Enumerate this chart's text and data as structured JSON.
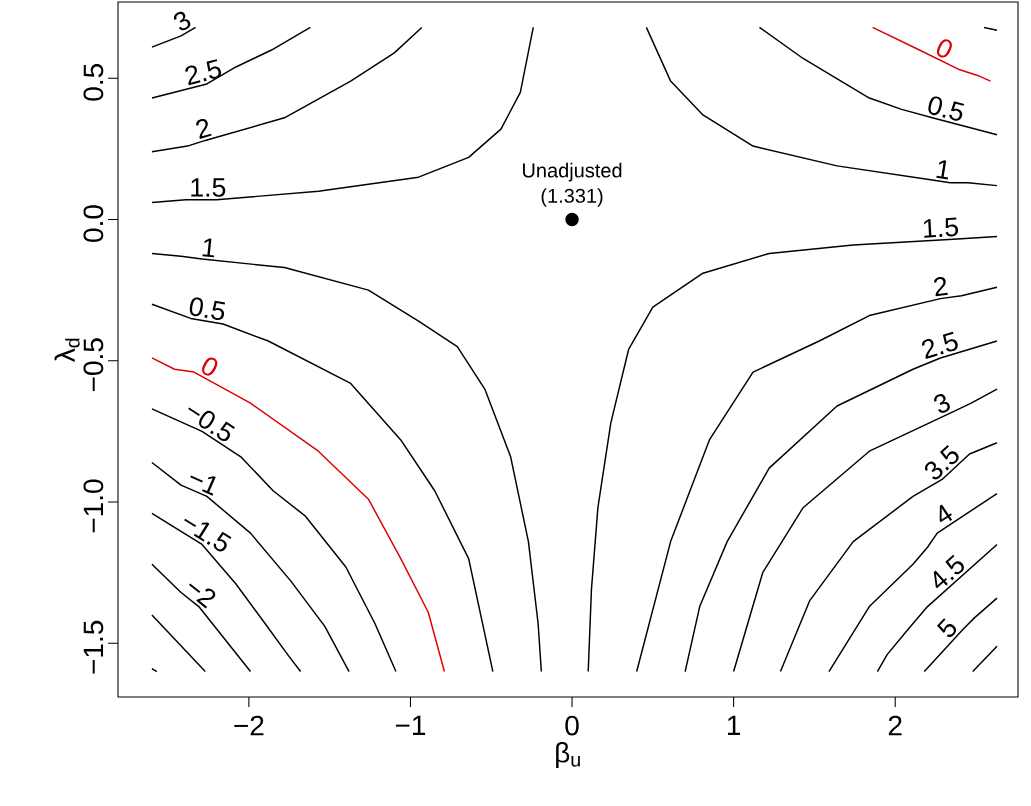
{
  "chart_data": {
    "type": "line",
    "xlabel": "β$_{u}$",
    "ylabel": "λ$_{d}$",
    "xlim": [
      -2.81,
      2.76
    ],
    "ylim": [
      -1.69,
      0.77
    ],
    "xticks": [
      {
        "value": -2,
        "label": "−2"
      },
      {
        "value": -1,
        "label": "−1"
      },
      0,
      1,
      2
    ],
    "yticks": [
      {
        "value": -1.5,
        "label": "−1.5"
      },
      {
        "value": -1.0,
        "label": "−1.0"
      },
      {
        "value": -0.5,
        "label": "−0.5"
      },
      {
        "value": 0,
        "label": "0.0"
      },
      0.5
    ],
    "grid": false,
    "annotations": [
      {
        "text": "Unadjusted (1.331)",
        "x": 0,
        "y": 0
      }
    ],
    "series": [
      {
        "name": "3",
        "color": "#000000",
        "x": [
          -2.6,
          -2.42,
          -2.33
        ],
        "values": [
          0.61,
          0.65,
          0.68
        ]
      },
      {
        "name": "2.5",
        "color": "#000000",
        "x": [
          -2.6,
          -2.26,
          -2.08,
          -1.86,
          -1.62
        ],
        "values": [
          0.43,
          0.48,
          0.54,
          0.6,
          0.68
        ]
      },
      {
        "name": "2",
        "color": "#000000",
        "x": [
          -2.6,
          -2.38,
          -2.27,
          -1.78,
          -1.37,
          -1.1,
          -0.93
        ],
        "values": [
          0.24,
          0.26,
          0.28,
          0.36,
          0.49,
          0.59,
          0.68
        ]
      },
      {
        "name": "1.5",
        "color": "#000000",
        "x": [
          -2.6,
          -2.39,
          -2.2,
          -1.57,
          -0.95,
          -0.64,
          -0.44,
          -0.32,
          -0.24
        ],
        "values": [
          0.06,
          0.07,
          0.07,
          0.1,
          0.15,
          0.22,
          0.32,
          0.45,
          0.68
        ]
      },
      {
        "name": "1",
        "color": "#000000",
        "x": [
          -2.6,
          -2.42,
          -2.29,
          -1.78,
          -1.26,
          -0.95,
          -0.71,
          -0.54,
          -0.38,
          -0.27,
          -0.21,
          -0.19
        ],
        "values": [
          -0.12,
          -0.13,
          -0.14,
          -0.17,
          -0.25,
          -0.36,
          -0.45,
          -0.6,
          -0.84,
          -1.14,
          -1.43,
          -1.6
        ]
      },
      {
        "name": "0.5",
        "color": "#000000",
        "x": [
          -2.6,
          -2.36,
          -2.16,
          -1.88,
          -1.37,
          -1.06,
          -0.85,
          -0.64,
          -0.49
        ],
        "values": [
          -0.3,
          -0.35,
          -0.37,
          -0.43,
          -0.58,
          -0.78,
          -0.96,
          -1.2,
          -1.6
        ]
      },
      {
        "name": "0",
        "color": "#dd0000",
        "x": [
          -2.6,
          -2.46,
          -2.34,
          -1.99,
          -1.57,
          -1.26,
          -1.06,
          -0.89,
          -0.79
        ],
        "values": [
          -0.49,
          -0.53,
          -0.54,
          -0.65,
          -0.82,
          -0.99,
          -1.2,
          -1.39,
          -1.6
        ]
      },
      {
        "name": "−0.5",
        "color": "#000000",
        "x": [
          -2.6,
          -2.29,
          -2.05,
          -1.85,
          -1.65,
          -1.4,
          -1.22,
          -1.09
        ],
        "values": [
          -0.67,
          -0.75,
          -0.84,
          -0.96,
          -1.05,
          -1.23,
          -1.43,
          -1.6
        ]
      },
      {
        "name": "−1",
        "color": "#000000",
        "x": [
          -2.6,
          -2.42,
          -2.26,
          -1.99,
          -1.74,
          -1.53,
          -1.38
        ],
        "values": [
          -0.86,
          -0.94,
          -0.98,
          -1.11,
          -1.28,
          -1.44,
          -1.6
        ]
      },
      {
        "name": "−1.5",
        "color": "#000000",
        "x": [
          -2.6,
          -2.29,
          -2.08,
          -1.9,
          -1.76,
          -1.68
        ],
        "values": [
          -1.04,
          -1.15,
          -1.29,
          -1.43,
          -1.54,
          -1.6
        ]
      },
      {
        "name": "−2",
        "color": "#000000",
        "x": [
          -2.6,
          -2.42,
          -2.31,
          -1.99
        ],
        "values": [
          -1.22,
          -1.32,
          -1.37,
          -1.6
        ]
      },
      {
        "color": "#000000",
        "x": [
          -2.6,
          -2.27
        ],
        "values": [
          -1.4,
          -1.6
        ]
      },
      {
        "color": "#000000",
        "x": [
          -2.6,
          -2.57
        ],
        "values": [
          -1.59,
          -1.6
        ]
      },
      {
        "name": "0",
        "color": "#dd0000",
        "x": [
          2.59,
          2.51,
          2.4,
          2.15,
          1.86
        ],
        "values": [
          0.49,
          0.51,
          0.53,
          0.6,
          0.68
        ]
      },
      {
        "name": "0.5",
        "color": "#000000",
        "x": [
          2.63,
          2.23,
          2.04,
          1.84,
          1.43,
          1.16
        ],
        "values": [
          0.3,
          0.36,
          0.39,
          0.43,
          0.57,
          0.68
        ]
      },
      {
        "name": "1",
        "color": "#000000",
        "x": [
          2.63,
          2.45,
          2.34,
          2.23,
          1.64,
          1.12,
          0.81,
          0.61,
          0.46
        ],
        "values": [
          0.12,
          0.13,
          0.13,
          0.14,
          0.19,
          0.26,
          0.37,
          0.49,
          0.68
        ]
      },
      {
        "color": "#000000",
        "x": [
          2.63,
          2.55
        ],
        "values": [
          0.67,
          0.68
        ]
      },
      {
        "name": "1.5",
        "color": "#000000",
        "x": [
          2.63,
          2.36,
          1.74,
          1.22,
          0.81,
          0.5,
          0.35,
          0.24,
          0.16,
          0.12,
          0.1
        ],
        "values": [
          -0.06,
          -0.07,
          -0.09,
          -0.12,
          -0.19,
          -0.31,
          -0.46,
          -0.72,
          -1.02,
          -1.31,
          -1.6
        ]
      },
      {
        "name": "2",
        "color": "#000000",
        "x": [
          2.63,
          2.41,
          2.28,
          1.84,
          1.53,
          1.12,
          0.85,
          0.61,
          0.4
        ],
        "values": [
          -0.24,
          -0.27,
          -0.28,
          -0.34,
          -0.43,
          -0.54,
          -0.78,
          -1.14,
          -1.6
        ]
      },
      {
        "name": "2.5",
        "color": "#000000",
        "x": [
          2.63,
          2.28,
          2.11,
          1.64,
          1.22,
          0.96,
          0.79,
          0.7
        ],
        "values": [
          -0.43,
          -0.49,
          -0.53,
          -0.66,
          -0.88,
          -1.14,
          -1.37,
          -1.6
        ]
      },
      {
        "name": "3",
        "color": "#000000",
        "x": [
          2.63,
          2.47,
          2.36,
          1.84,
          1.43,
          1.18,
          1.0
        ],
        "values": [
          -0.6,
          -0.65,
          -0.68,
          -0.82,
          -1.02,
          -1.25,
          -1.6
        ]
      },
      {
        "name": "3.5",
        "color": "#000000",
        "x": [
          2.63,
          2.46,
          2.29,
          2.11,
          1.74,
          1.47,
          1.29
        ],
        "values": [
          -0.79,
          -0.83,
          -0.92,
          -0.98,
          -1.14,
          -1.35,
          -1.6
        ]
      },
      {
        "name": "4",
        "color": "#000000",
        "x": [
          2.63,
          2.26,
          2.2,
          2.11,
          1.84,
          1.59
        ],
        "values": [
          -0.97,
          -1.11,
          -1.16,
          -1.22,
          -1.37,
          -1.6
        ]
      },
      {
        "name": "4.5",
        "color": "#000000",
        "x": [
          2.63,
          2.2,
          2.08,
          1.95,
          1.89
        ],
        "values": [
          -1.15,
          -1.37,
          -1.45,
          -1.54,
          -1.6
        ]
      },
      {
        "name": "5",
        "color": "#000000",
        "x": [
          2.63,
          2.49,
          2.42,
          2.18
        ],
        "values": [
          -1.34,
          -1.41,
          -1.45,
          -1.6
        ]
      },
      {
        "color": "#000000",
        "x": [
          2.63,
          2.48
        ],
        "values": [
          -1.51,
          -1.6
        ]
      },
      {
        "type": "scatter",
        "marker": "circle",
        "color": "#000000",
        "x": [
          0
        ],
        "values": [
          0
        ]
      }
    ]
  }
}
